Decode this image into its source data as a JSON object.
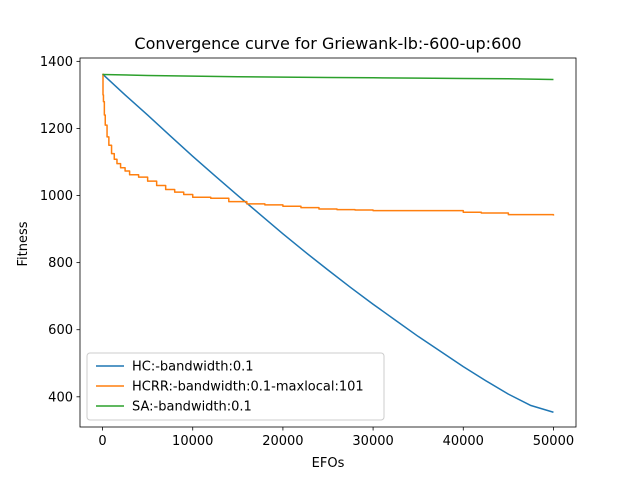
{
  "chart_data": {
    "type": "line",
    "title": "Convergence curve for Griewank-lb:-600-up:600",
    "xlabel": "EFOs",
    "ylabel": "Fitness",
    "xlim": [
      -2500,
      52500
    ],
    "ylim": [
      310,
      1410
    ],
    "xticks": [
      0,
      10000,
      20000,
      30000,
      40000,
      50000
    ],
    "xtick_labels": [
      "0",
      "10000",
      "20000",
      "30000",
      "40000",
      "50000"
    ],
    "yticks": [
      400,
      600,
      800,
      1000,
      1200,
      1400
    ],
    "ytick_labels": [
      "400",
      "600",
      "800",
      "1000",
      "1200",
      "1400"
    ],
    "grid": false,
    "legend_position": "lower-left",
    "series": [
      {
        "name": "HC:-bandwidth:0.1",
        "color": "#1f77b4",
        "x": [
          0,
          2500,
          5000,
          7500,
          10000,
          12500,
          15000,
          17500,
          20000,
          22500,
          25000,
          27500,
          30000,
          32500,
          35000,
          37500,
          40000,
          42500,
          45000,
          47500,
          50000
        ],
        "y": [
          1362,
          1300,
          1240,
          1178,
          1117,
          1058,
          1000,
          943,
          886,
          831,
          778,
          726,
          676,
          628,
          580,
          535,
          490,
          448,
          408,
          374,
          354
        ]
      },
      {
        "name": "HCRR:-bandwidth:0.1-maxlocal:101",
        "color": "#ff7f0e",
        "step": true,
        "x": [
          0,
          50,
          100,
          200,
          300,
          500,
          700,
          1000,
          1300,
          1600,
          2000,
          2500,
          3000,
          4000,
          5000,
          6000,
          7000,
          8000,
          9000,
          10000,
          12000,
          14000,
          16000,
          18000,
          20000,
          22000,
          24000,
          26000,
          28000,
          30000,
          35000,
          39000,
          40000,
          42000,
          45000,
          50000
        ],
        "y": [
          1362,
          1300,
          1280,
          1240,
          1210,
          1175,
          1150,
          1125,
          1108,
          1095,
          1083,
          1073,
          1062,
          1055,
          1043,
          1030,
          1018,
          1010,
          1003,
          995,
          992,
          982,
          975,
          972,
          968,
          964,
          960,
          958,
          957,
          955,
          955,
          955,
          950,
          948,
          943,
          940
        ]
      },
      {
        "name": "SA:-bandwidth:0.1",
        "color": "#2ca02c",
        "x": [
          0,
          5000,
          10000,
          15000,
          20000,
          25000,
          30000,
          35000,
          40000,
          45000,
          50000
        ],
        "y": [
          1361,
          1358,
          1356,
          1354,
          1353,
          1352,
          1351,
          1350,
          1349,
          1348,
          1346
        ]
      }
    ]
  }
}
